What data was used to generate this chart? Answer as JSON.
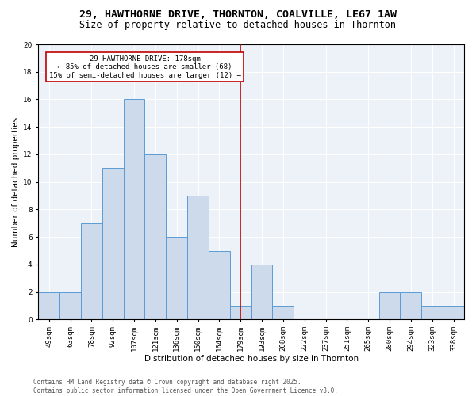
{
  "title1": "29, HAWTHORNE DRIVE, THORNTON, COALVILLE, LE67 1AW",
  "title2": "Size of property relative to detached houses in Thornton",
  "xlabel": "Distribution of detached houses by size in Thornton",
  "ylabel": "Number of detached properties",
  "bar_values": [
    2,
    2,
    7,
    11,
    16,
    12,
    6,
    9,
    5,
    1,
    4,
    1,
    0,
    0,
    0,
    0,
    2,
    2,
    1,
    1
  ],
  "bin_labels": [
    "49sqm",
    "63sqm",
    "78sqm",
    "92sqm",
    "107sqm",
    "121sqm",
    "136sqm",
    "150sqm",
    "164sqm",
    "179sqm",
    "193sqm",
    "208sqm",
    "222sqm",
    "237sqm",
    "251sqm",
    "265sqm",
    "280sqm",
    "294sqm",
    "323sqm",
    "338sqm"
  ],
  "bar_color": "#ccdaeb",
  "bar_edge_color": "#5b9bd5",
  "vline_color": "#c00000",
  "annotation_text": "29 HAWTHORNE DRIVE: 178sqm\n← 85% of detached houses are smaller (68)\n15% of semi-detached houses are larger (12) →",
  "annotation_box_color": "#c00000",
  "ylim": [
    0,
    20
  ],
  "yticks": [
    0,
    2,
    4,
    6,
    8,
    10,
    12,
    14,
    16,
    18,
    20
  ],
  "bg_color": "#edf2f9",
  "footer_text": "Contains HM Land Registry data © Crown copyright and database right 2025.\nContains public sector information licensed under the Open Government Licence v3.0.",
  "title1_fontsize": 9.5,
  "title2_fontsize": 8.5,
  "xlabel_fontsize": 7.5,
  "ylabel_fontsize": 7.5,
  "tick_fontsize": 6.5,
  "annotation_fontsize": 6.5,
  "footer_fontsize": 5.5
}
